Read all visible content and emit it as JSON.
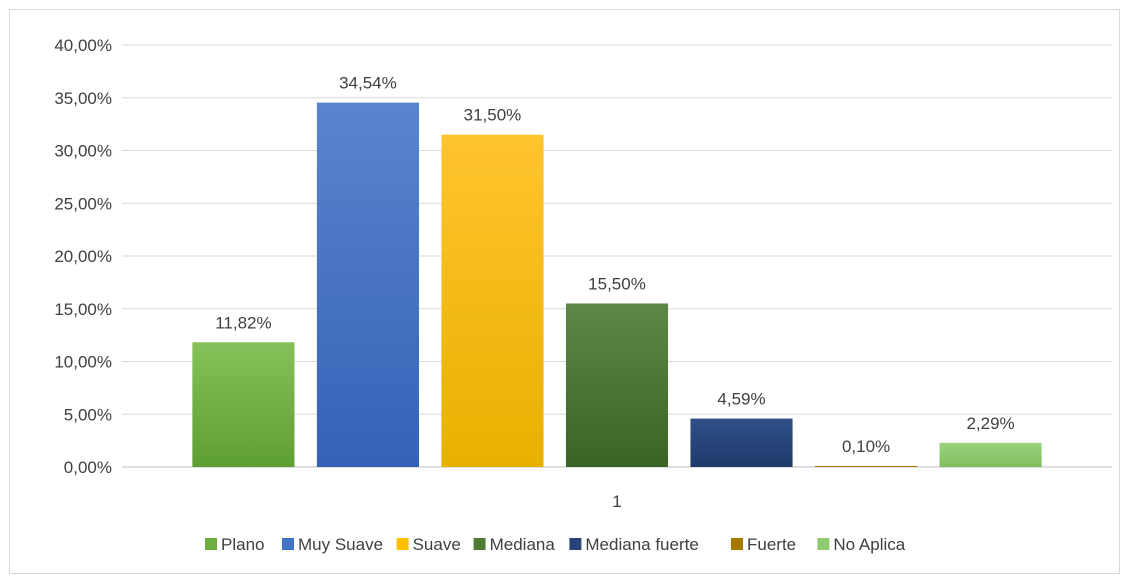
{
  "chart_data": {
    "type": "bar",
    "categories": [
      "1"
    ],
    "ylim": [
      0,
      40
    ],
    "yticks": [
      "0,00%",
      "5,00%",
      "10,00%",
      "15,00%",
      "20,00%",
      "25,00%",
      "30,00%",
      "35,00%",
      "40,00%"
    ],
    "grid": true,
    "legend_position": "bottom",
    "series": [
      {
        "name": "Plano",
        "value": 11.82,
        "label": "11,82%",
        "color": "#6aaf3d",
        "color_top": "#84c15a",
        "color_bottom": "#5e9f33"
      },
      {
        "name": "Muy Suave",
        "value": 34.54,
        "label": "34,54%",
        "color": "#4472c4",
        "color_top": "#5b84cf",
        "color_bottom": "#3562b7"
      },
      {
        "name": "Suave",
        "value": 31.5,
        "label": "31,50%",
        "color": "#ffc000",
        "color_top": "#ffc42e",
        "color_bottom": "#e8b100"
      },
      {
        "name": "Mediana",
        "value": 15.5,
        "label": "15,50%",
        "color": "#4e7a32",
        "color_top": "#5e8748",
        "color_bottom": "#3b6323"
      },
      {
        "name": "Mediana fuerte",
        "value": 4.59,
        "label": "4,59%",
        "color": "#264478",
        "color_top": "#2f4f88",
        "color_bottom": "#1e3a6b"
      },
      {
        "name": "Fuerte",
        "value": 0.1,
        "label": "0,10%",
        "color": "#a67a00",
        "color_top": "#b8890a",
        "color_bottom": "#9a7000"
      },
      {
        "name": "No Aplica",
        "value": 2.29,
        "label": "2,29%",
        "color": "#8fcb70",
        "color_top": "#9ad27d",
        "color_bottom": "#7fbf5f"
      }
    ]
  }
}
